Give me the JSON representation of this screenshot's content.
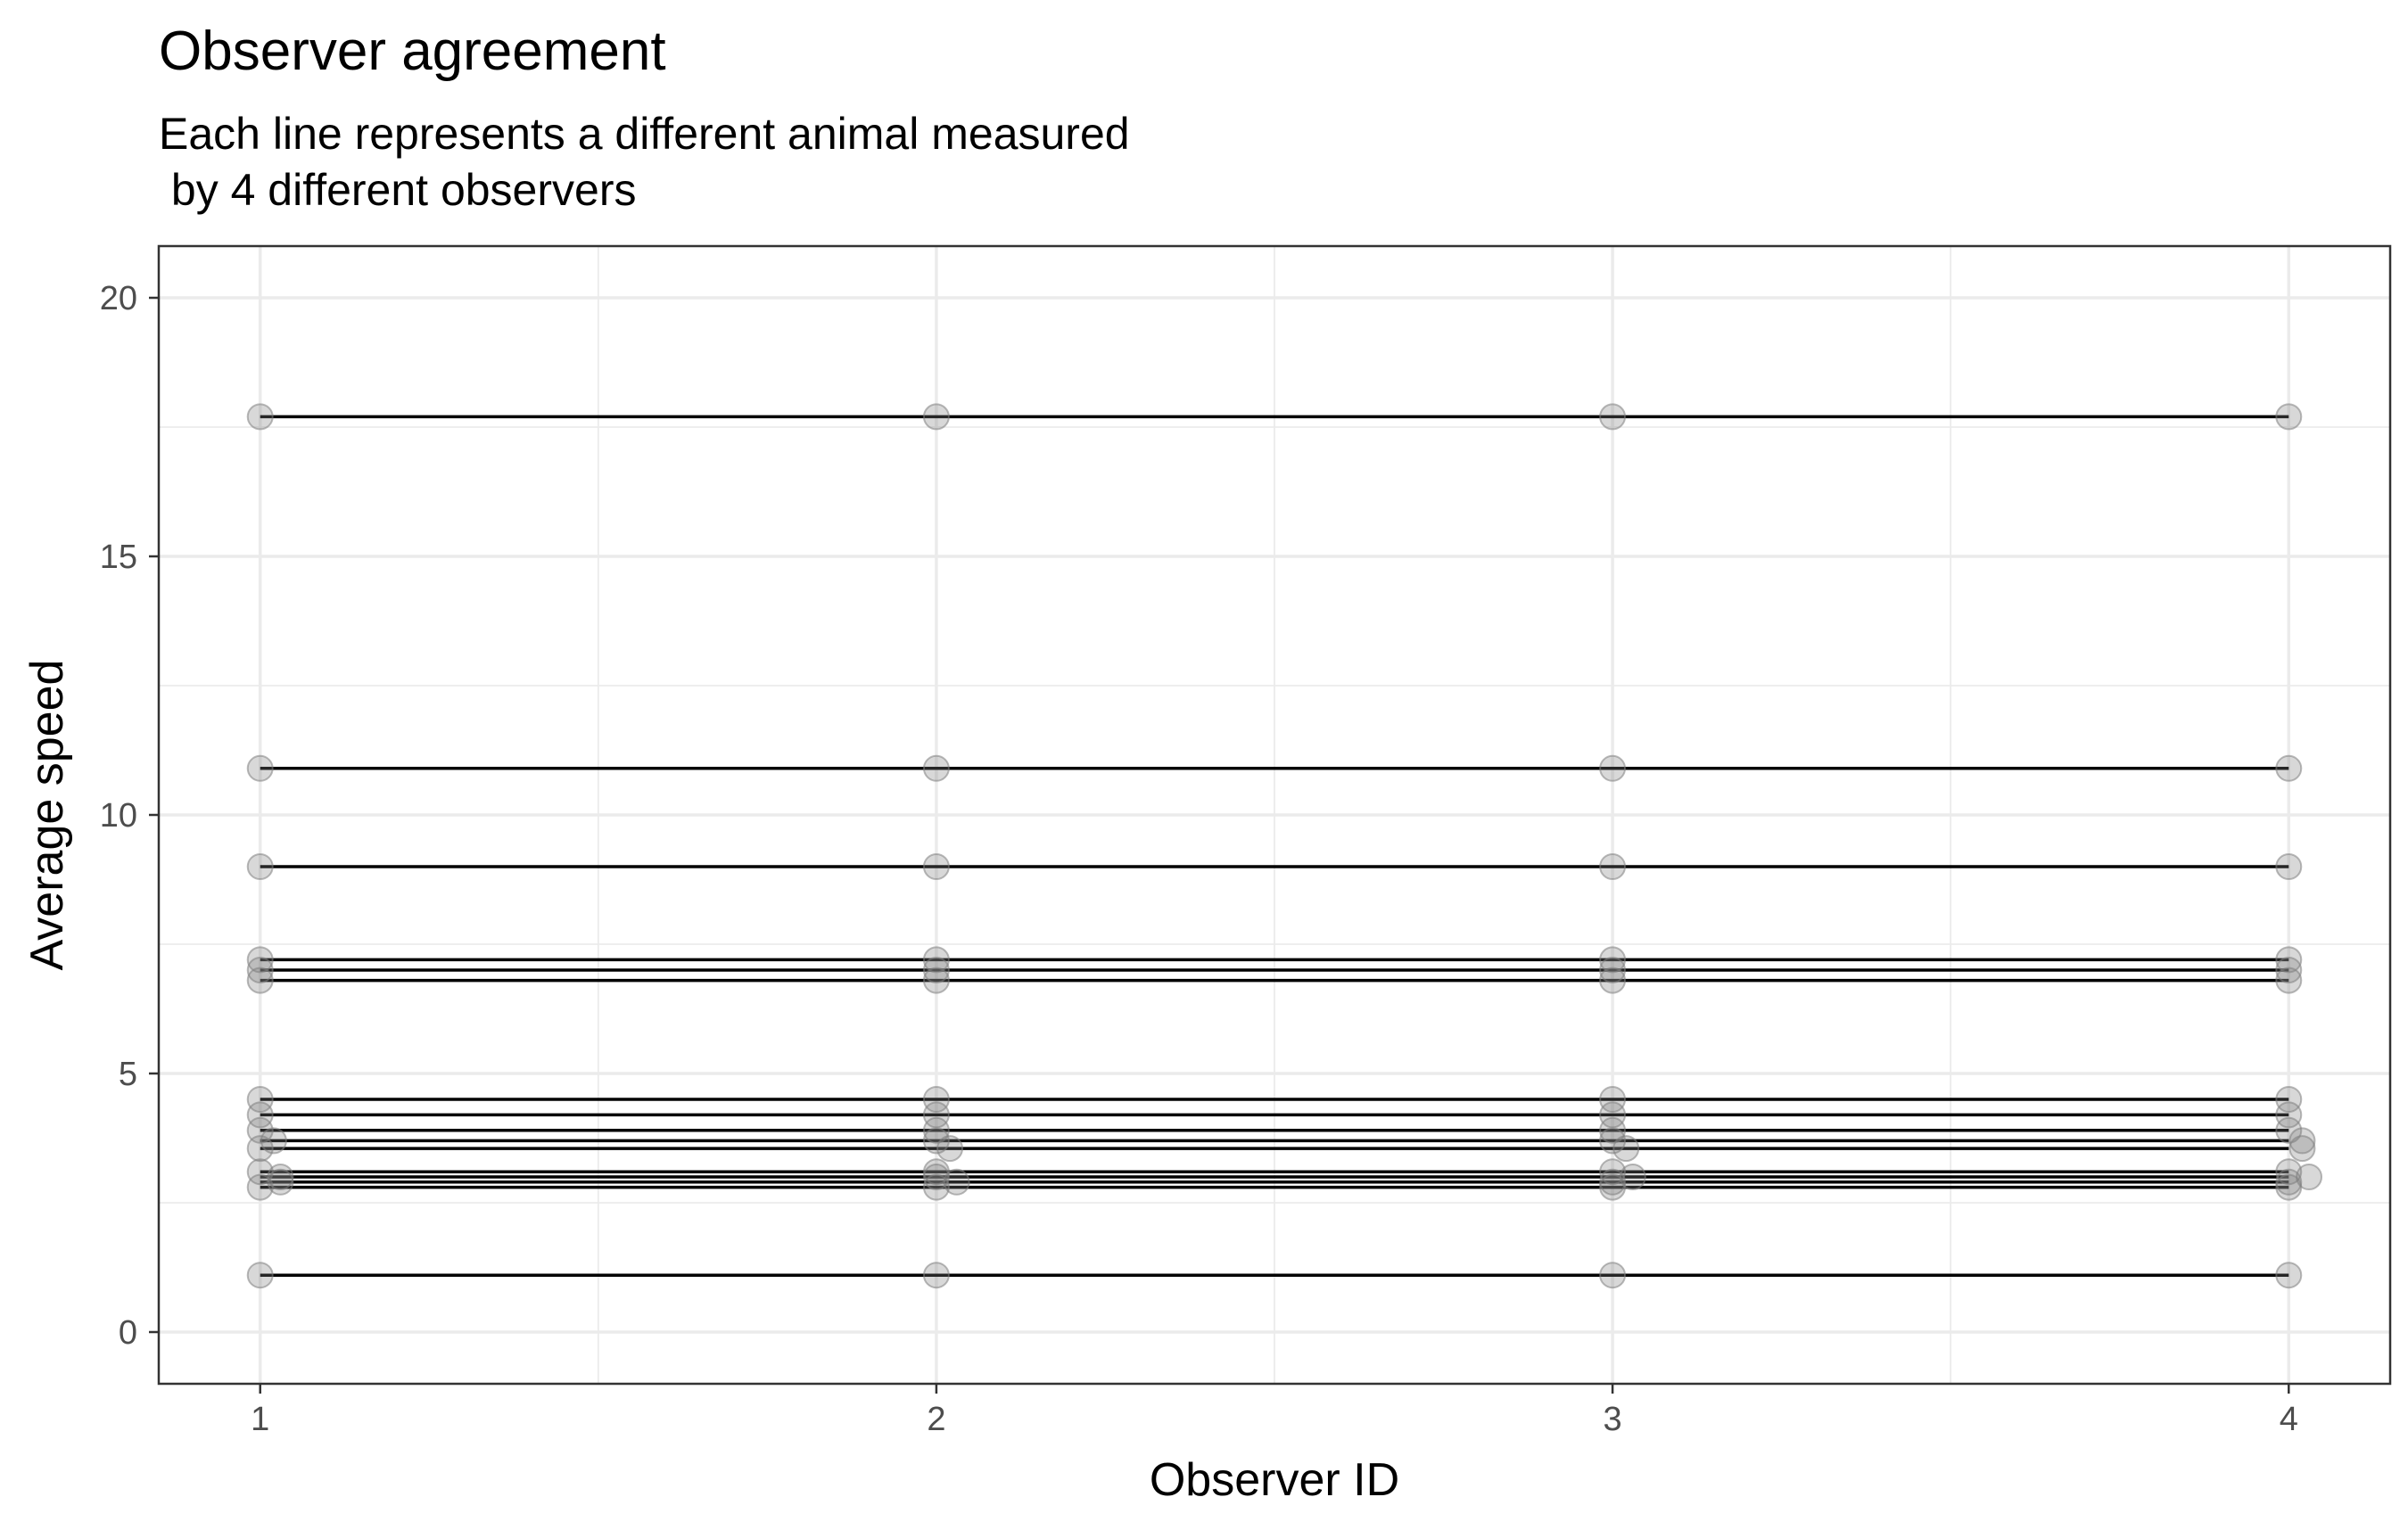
{
  "chart_data": {
    "type": "line",
    "title": "Observer agreement",
    "subtitle_lines": [
      "Each line represents a different animal measured",
      " by 4 different observers"
    ],
    "xlabel": "Observer ID",
    "ylabel": "Average speed",
    "x": [
      1,
      2,
      3,
      4
    ],
    "x_ticks": [
      "1",
      "2",
      "3",
      "4"
    ],
    "y_ticks": [
      "0",
      "5",
      "10",
      "15",
      "20"
    ],
    "xlim": [
      0.85,
      4.15
    ],
    "ylim": [
      -1,
      21
    ],
    "grid": true,
    "legend": "none",
    "jitter": [
      [
        0,
        0,
        0,
        0
      ],
      [
        0,
        0,
        0,
        0
      ],
      [
        0,
        0,
        0,
        0
      ],
      [
        0,
        0,
        0,
        0
      ],
      [
        0,
        0,
        0,
        0
      ],
      [
        0,
        0,
        0,
        0
      ],
      [
        0,
        0,
        0,
        0
      ],
      [
        0,
        0,
        0,
        0
      ],
      [
        0,
        0,
        0,
        0
      ],
      [
        0.02,
        0,
        0,
        0.02
      ],
      [
        0,
        0.02,
        0.02,
        0.02
      ],
      [
        0,
        0,
        0,
        0
      ],
      [
        0.03,
        0,
        0.03,
        0.03
      ],
      [
        0.03,
        0.03,
        0,
        0
      ],
      [
        0,
        0,
        0,
        0
      ],
      [
        0,
        0,
        0,
        0
      ]
    ],
    "series": [
      {
        "values": [
          17.7,
          17.7,
          17.7,
          17.7
        ]
      },
      {
        "values": [
          10.9,
          10.9,
          10.9,
          10.9
        ]
      },
      {
        "values": [
          9.0,
          9.0,
          9.0,
          9.0
        ]
      },
      {
        "values": [
          7.2,
          7.2,
          7.2,
          7.2
        ]
      },
      {
        "values": [
          7.0,
          7.0,
          7.0,
          7.0
        ]
      },
      {
        "values": [
          6.8,
          6.8,
          6.8,
          6.8
        ]
      },
      {
        "values": [
          4.5,
          4.5,
          4.5,
          4.5
        ]
      },
      {
        "values": [
          4.2,
          4.2,
          4.2,
          4.2
        ]
      },
      {
        "values": [
          3.9,
          3.9,
          3.9,
          3.9
        ]
      },
      {
        "values": [
          3.7,
          3.7,
          3.7,
          3.7
        ]
      },
      {
        "values": [
          3.55,
          3.55,
          3.55,
          3.55
        ]
      },
      {
        "values": [
          3.1,
          3.1,
          3.1,
          3.1
        ]
      },
      {
        "values": [
          3.0,
          3.0,
          3.0,
          3.0
        ]
      },
      {
        "values": [
          2.9,
          2.9,
          2.9,
          2.9
        ]
      },
      {
        "values": [
          2.8,
          2.8,
          2.8,
          2.8
        ]
      },
      {
        "values": [
          1.1,
          1.1,
          1.1,
          1.1
        ]
      }
    ]
  }
}
